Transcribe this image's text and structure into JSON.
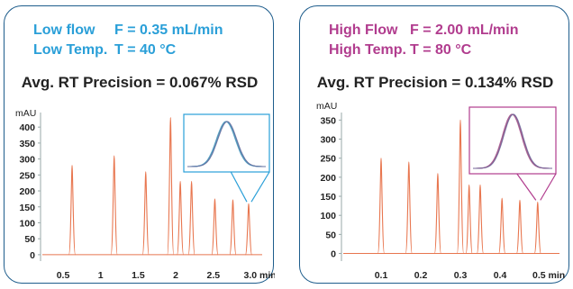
{
  "colors": {
    "left_accent": "#2a9fd8",
    "right_accent": "#b13c8e",
    "trace": "#e8764f",
    "border": "#1e5d8c"
  },
  "chart_data": [
    {
      "type": "line",
      "conditions": [
        {
          "label": "Low flow",
          "value": "F = 0.35 mL/min"
        },
        {
          "label": "Low Temp.",
          "value": "T = 40 °C"
        }
      ],
      "precision": "Avg. RT Precision = 0.067% RSD",
      "ylabel": "mAU",
      "xlabel": "min",
      "ylim": [
        -20,
        440
      ],
      "xlim": [
        0.2,
        3.15
      ],
      "yticks": [
        0,
        50,
        100,
        150,
        200,
        250,
        300,
        350,
        400
      ],
      "xticks": [
        0.5,
        1,
        1.5,
        2,
        2.5,
        3.0
      ],
      "xtick_labels": [
        "0.5",
        "1",
        "1.5",
        "2",
        "2.5",
        "3.0 min"
      ],
      "peaks": [
        {
          "rt": 0.62,
          "height": 280
        },
        {
          "rt": 1.18,
          "height": 310
        },
        {
          "rt": 1.6,
          "height": 260
        },
        {
          "rt": 1.93,
          "height": 430
        },
        {
          "rt": 2.06,
          "height": 230
        },
        {
          "rt": 2.21,
          "height": 230
        },
        {
          "rt": 2.52,
          "height": 175
        },
        {
          "rt": 2.76,
          "height": 172
        },
        {
          "rt": 2.97,
          "height": 160
        }
      ],
      "inset_peak": 2.97
    },
    {
      "type": "line",
      "conditions": [
        {
          "label": "High Flow",
          "value": "F = 2.00 mL/min"
        },
        {
          "label": "High Temp.",
          "value": "T = 80 °C"
        }
      ],
      "precision": "Avg. RT Precision = 0.134% RSD",
      "ylabel": "mAU",
      "xlabel": "min",
      "ylim": [
        -20,
        365
      ],
      "xlim": [
        0.0,
        0.55
      ],
      "yticks": [
        0,
        50,
        100,
        150,
        200,
        250,
        300,
        350
      ],
      "xticks": [
        0.1,
        0.2,
        0.3,
        0.4,
        0.5
      ],
      "xtick_labels": [
        "0.1",
        "0.2",
        "0.3",
        "0.4",
        "0.5 min"
      ],
      "peaks": [
        {
          "rt": 0.1,
          "height": 250
        },
        {
          "rt": 0.17,
          "height": 240
        },
        {
          "rt": 0.243,
          "height": 210
        },
        {
          "rt": 0.3,
          "height": 350
        },
        {
          "rt": 0.322,
          "height": 180
        },
        {
          "rt": 0.35,
          "height": 180
        },
        {
          "rt": 0.405,
          "height": 145
        },
        {
          "rt": 0.45,
          "height": 140
        },
        {
          "rt": 0.495,
          "height": 135
        }
      ],
      "inset_peak": 0.495
    }
  ]
}
